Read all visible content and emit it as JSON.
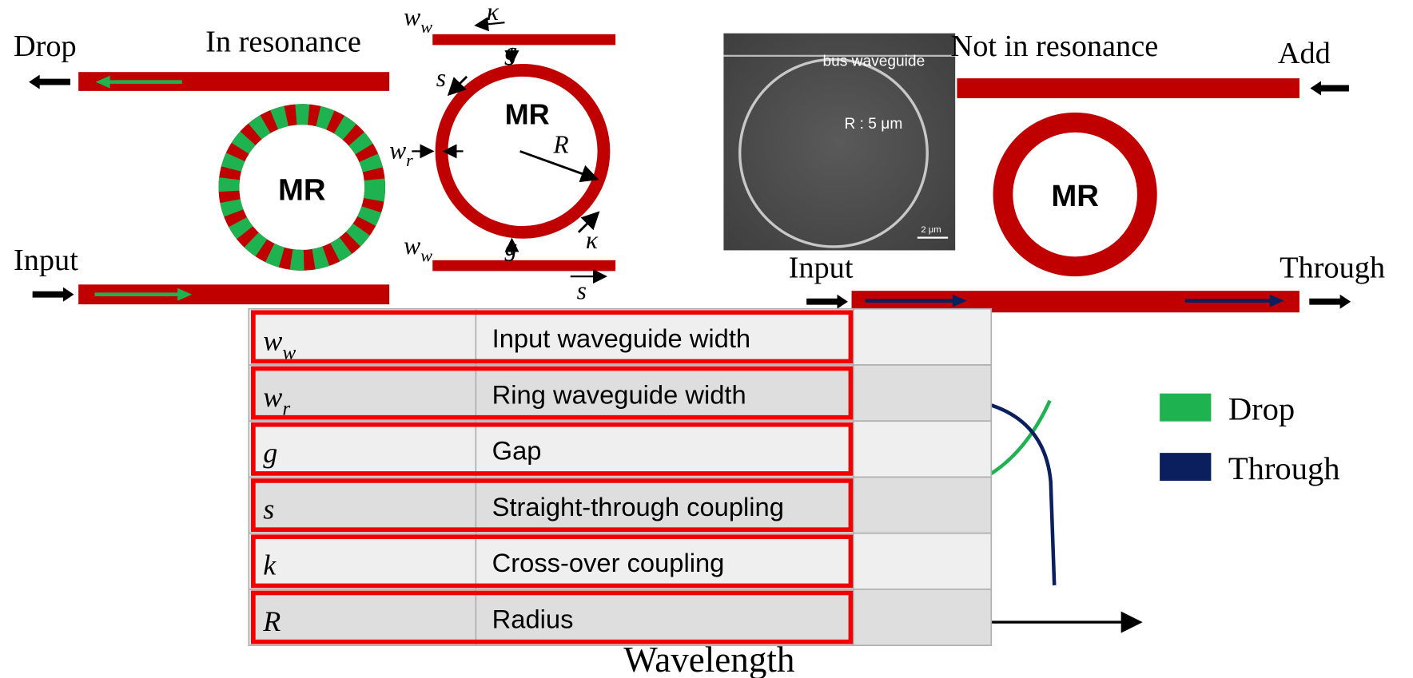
{
  "left_diagram": {
    "title": "In resonance",
    "drop": "Drop",
    "input": "Input",
    "ring": "MR"
  },
  "schematic": {
    "ring": "MR",
    "labels": [
      {
        "symbol": "w",
        "sub": "w"
      },
      {
        "symbol": "κ"
      },
      {
        "symbol": "g"
      },
      {
        "symbol": "s"
      },
      {
        "symbol": "w",
        "sub": "r"
      },
      {
        "symbol": "R"
      },
      {
        "symbol": "w",
        "sub": "w"
      },
      {
        "symbol": "g"
      },
      {
        "symbol": "κ"
      },
      {
        "symbol": "s"
      }
    ]
  },
  "sem_image": {
    "bus": "bus waveguide",
    "radius": "R : 5 μm",
    "scale": "2 μm"
  },
  "right_diagram": {
    "title": "Not in resonance",
    "add": "Add",
    "input": "Input",
    "through": "Through",
    "ring": "MR"
  },
  "plot": {
    "x_label": "Wavelength",
    "legend": [
      {
        "name": "Drop",
        "color": "#1fb250"
      },
      {
        "name": "Through",
        "color": "#0b1f5e"
      }
    ]
  },
  "table": {
    "rows": [
      {
        "symbol": "w",
        "sub": "w",
        "description": "Input waveguide width"
      },
      {
        "symbol": "w",
        "sub": "r",
        "description": "Ring waveguide width"
      },
      {
        "symbol": "g",
        "description": "Gap"
      },
      {
        "symbol": "s",
        "description": "Straight-through coupling"
      },
      {
        "symbol": "k",
        "description": "Cross-over coupling"
      },
      {
        "symbol": "R",
        "description": "Radius"
      }
    ]
  }
}
